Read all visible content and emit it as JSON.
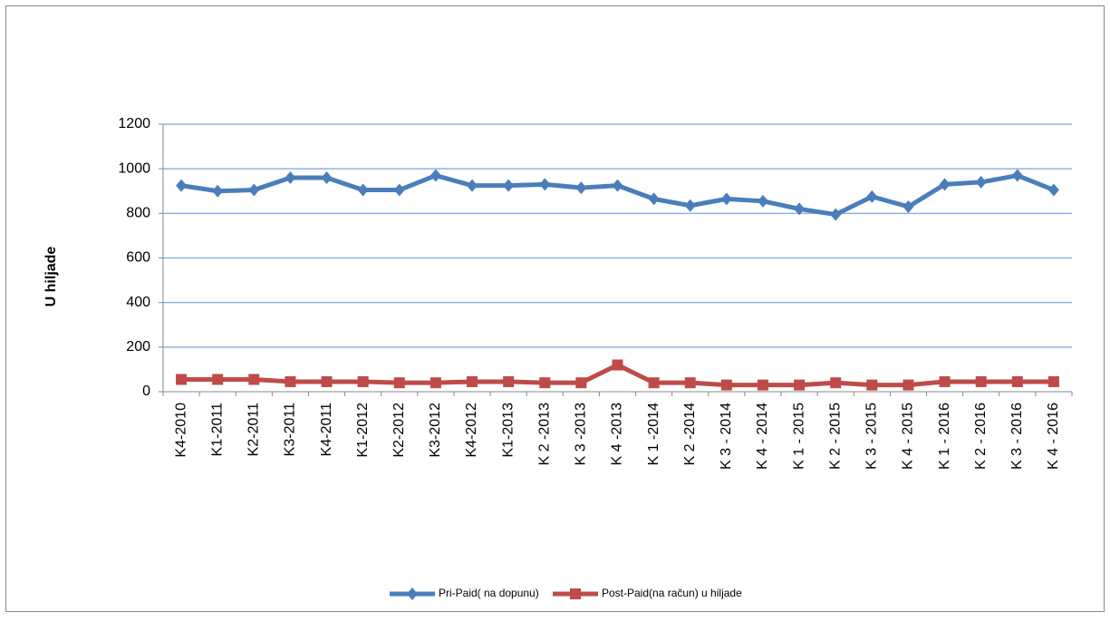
{
  "chart_data": {
    "type": "line",
    "y_label": "U hiljade",
    "categories": [
      "K4-2010",
      "K1-2011",
      "K2-2011",
      "K3-2011",
      "K4-2011",
      "K1-2012",
      "K2-2012",
      "K3-2012",
      "K4-2012",
      "K1-2013",
      "K 2 -2013",
      "K 3 -2013",
      "K 4 -2013",
      "K 1 -2014",
      "K 2 -2014",
      "K 3 - 2014",
      "K 4 - 2014",
      "K 1 - 2015",
      "K 2 - 2015",
      "K 3 - 2015",
      "K 4 - 2015",
      "K 1 - 2016",
      "K 2 - 2016",
      "K 3 - 2016",
      "K 4 - 2016"
    ],
    "series": [
      {
        "name": "Pri-Paid( na dopunu)",
        "color": "#4a7ebb",
        "marker": "diamond",
        "values": [
          925,
          900,
          905,
          960,
          960,
          905,
          905,
          970,
          925,
          925,
          930,
          915,
          925,
          865,
          835,
          865,
          855,
          820,
          795,
          875,
          830,
          930,
          940,
          970,
          905
        ]
      },
      {
        "name": "Post-Paid(na račun) u hiljade",
        "color": "#be4b48",
        "marker": "square",
        "values": [
          55,
          55,
          55,
          45,
          45,
          45,
          40,
          40,
          45,
          45,
          40,
          40,
          120,
          40,
          40,
          30,
          30,
          30,
          40,
          30,
          30,
          45,
          45,
          45,
          45
        ]
      }
    ],
    "ylim": [
      0,
      1200
    ],
    "yticks": [
      0,
      200,
      400,
      600,
      800,
      1000,
      1200
    ],
    "grid": true,
    "legend": "bottom"
  }
}
